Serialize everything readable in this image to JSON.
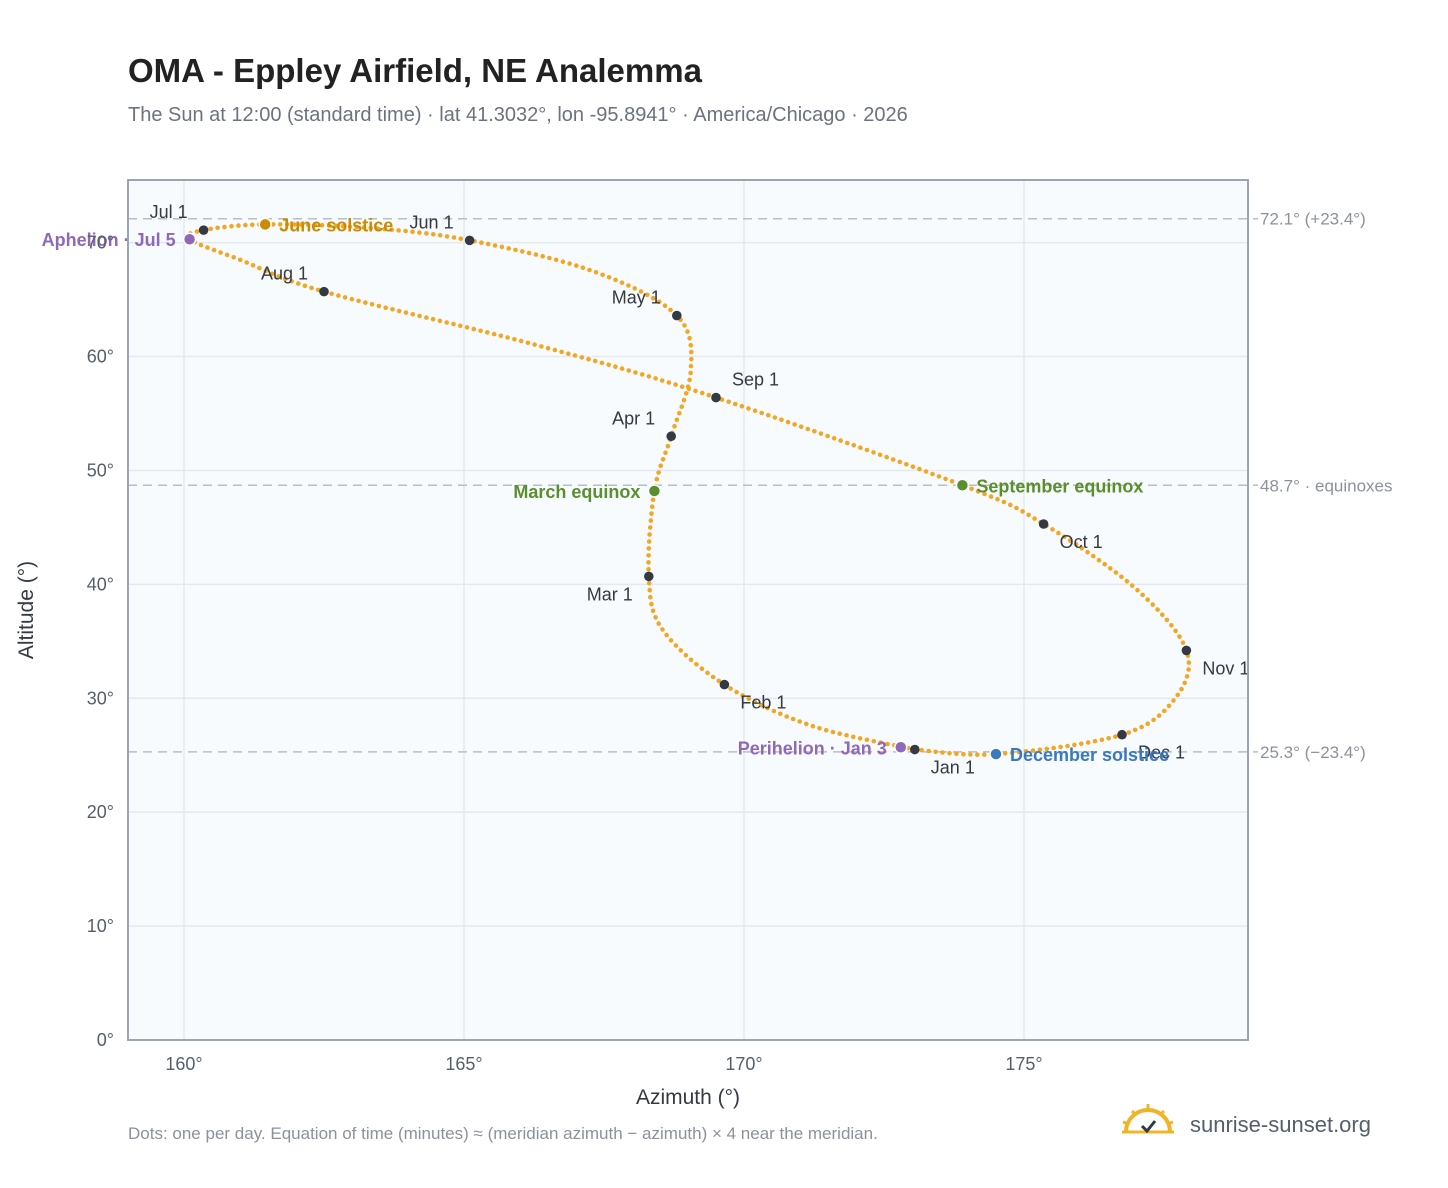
{
  "title": "OMA - Eppley Airfield, NE Analemma",
  "subtitle": "The Sun at 12:00 (standard time) · lat 41.3032°, lon -95.8941° · America/Chicago · 2026",
  "footnote": "Dots: one per day. Equation of time (minutes) ≈ (meridian azimuth − azimuth) × 4 near the meridian.",
  "brand": {
    "text": "sunrise-sunset.org",
    "logo_icon": "sun-check-icon"
  },
  "colors": {
    "curve": "#f2a623",
    "month_marker": "#333a44",
    "equinox": "#5a8f2e",
    "june_solstice": "#cc8a00",
    "december_solstice": "#3a78c0",
    "apsis": "#9068b8",
    "plot_bg": "#f8fbfd",
    "grid": "#e4e9ef",
    "frame": "#9aa5b1"
  },
  "chart_data": {
    "type": "scatter",
    "xlabel": "Azimuth (°)",
    "ylabel": "Altitude (°)",
    "xlim": [
      159,
      179
    ],
    "ylim": [
      0,
      75.5
    ],
    "grid": true,
    "x_ticks": [
      {
        "value": 160,
        "label": "160°"
      },
      {
        "value": 165,
        "label": "165°"
      },
      {
        "value": 170,
        "label": "170°"
      },
      {
        "value": 175,
        "label": "175°"
      }
    ],
    "y_ticks": [
      {
        "value": 0,
        "label": "0°"
      },
      {
        "value": 10,
        "label": "10°"
      },
      {
        "value": 20,
        "label": "20°"
      },
      {
        "value": 30,
        "label": "30°"
      },
      {
        "value": 40,
        "label": "40°"
      },
      {
        "value": 50,
        "label": "50°"
      },
      {
        "value": 60,
        "label": "60°"
      },
      {
        "value": 70,
        "label": "70°"
      }
    ],
    "reference_lines": [
      {
        "y": 72.1,
        "label": "72.1° (+23.4°)"
      },
      {
        "y": 48.7,
        "label": "48.7° · equinoxes"
      },
      {
        "y": 25.3,
        "label": "25.3° (−23.4°)"
      }
    ],
    "month_markers": [
      {
        "label": "Jan 1",
        "x": 173.05,
        "y": 25.5,
        "anchor": "below-right"
      },
      {
        "label": "Feb 1",
        "x": 169.65,
        "y": 31.2,
        "anchor": "below-right"
      },
      {
        "label": "Mar 1",
        "x": 168.3,
        "y": 40.7,
        "anchor": "below-left"
      },
      {
        "label": "Apr 1",
        "x": 168.7,
        "y": 53.0,
        "anchor": "above-left"
      },
      {
        "label": "May 1",
        "x": 168.8,
        "y": 63.6,
        "anchor": "above-left"
      },
      {
        "label": "Jun 1",
        "x": 165.1,
        "y": 70.2,
        "anchor": "above-left"
      },
      {
        "label": "Jul 1",
        "x": 160.35,
        "y": 71.1,
        "anchor": "above-left"
      },
      {
        "label": "Aug 1",
        "x": 162.5,
        "y": 65.7,
        "anchor": "above-left"
      },
      {
        "label": "Sep 1",
        "x": 169.5,
        "y": 56.4,
        "anchor": "above-right"
      },
      {
        "label": "Oct 1",
        "x": 175.35,
        "y": 45.3,
        "anchor": "below-right"
      },
      {
        "label": "Nov 1",
        "x": 177.9,
        "y": 34.2,
        "anchor": "below-right"
      },
      {
        "label": "Dec 1",
        "x": 176.75,
        "y": 26.8,
        "anchor": "below-right"
      }
    ],
    "events": [
      {
        "label": "March equinox",
        "x": 168.4,
        "y": 48.2,
        "color_key": "equinox",
        "anchor": "left"
      },
      {
        "label": "June solstice",
        "x": 161.45,
        "y": 71.6,
        "color_key": "june_solstice",
        "anchor": "right"
      },
      {
        "label": "September equinox",
        "x": 173.9,
        "y": 48.7,
        "color_key": "equinox",
        "anchor": "right"
      },
      {
        "label": "December solstice",
        "x": 174.5,
        "y": 25.1,
        "color_key": "december_solstice",
        "anchor": "right"
      },
      {
        "label": "Aphelion · Jul 5",
        "x": 160.1,
        "y": 70.3,
        "color_key": "apsis",
        "anchor": "left"
      },
      {
        "label": "Perihelion · Jan 3",
        "x": 172.8,
        "y": 25.7,
        "color_key": "apsis",
        "anchor": "left"
      }
    ],
    "path_control_points": [
      {
        "x": 173.05,
        "y": 25.5
      },
      {
        "x": 171.2,
        "y": 27.6
      },
      {
        "x": 169.65,
        "y": 31.2
      },
      {
        "x": 168.55,
        "y": 36.0
      },
      {
        "x": 168.3,
        "y": 40.7
      },
      {
        "x": 168.4,
        "y": 48.2
      },
      {
        "x": 168.7,
        "y": 53.0
      },
      {
        "x": 169.05,
        "y": 58.8
      },
      {
        "x": 168.8,
        "y": 63.6
      },
      {
        "x": 167.3,
        "y": 67.5
      },
      {
        "x": 165.1,
        "y": 70.2
      },
      {
        "x": 163.3,
        "y": 71.3
      },
      {
        "x": 161.45,
        "y": 71.6
      },
      {
        "x": 160.35,
        "y": 71.1
      },
      {
        "x": 160.1,
        "y": 70.3
      },
      {
        "x": 161.0,
        "y": 68.5
      },
      {
        "x": 162.5,
        "y": 65.7
      },
      {
        "x": 166.3,
        "y": 61.0
      },
      {
        "x": 169.5,
        "y": 56.4
      },
      {
        "x": 173.9,
        "y": 48.7
      },
      {
        "x": 175.35,
        "y": 45.3
      },
      {
        "x": 177.0,
        "y": 39.6
      },
      {
        "x": 177.9,
        "y": 34.2
      },
      {
        "x": 177.7,
        "y": 30.0
      },
      {
        "x": 176.75,
        "y": 26.8
      },
      {
        "x": 174.5,
        "y": 25.1
      },
      {
        "x": 173.05,
        "y": 25.5
      }
    ],
    "days": 365
  }
}
